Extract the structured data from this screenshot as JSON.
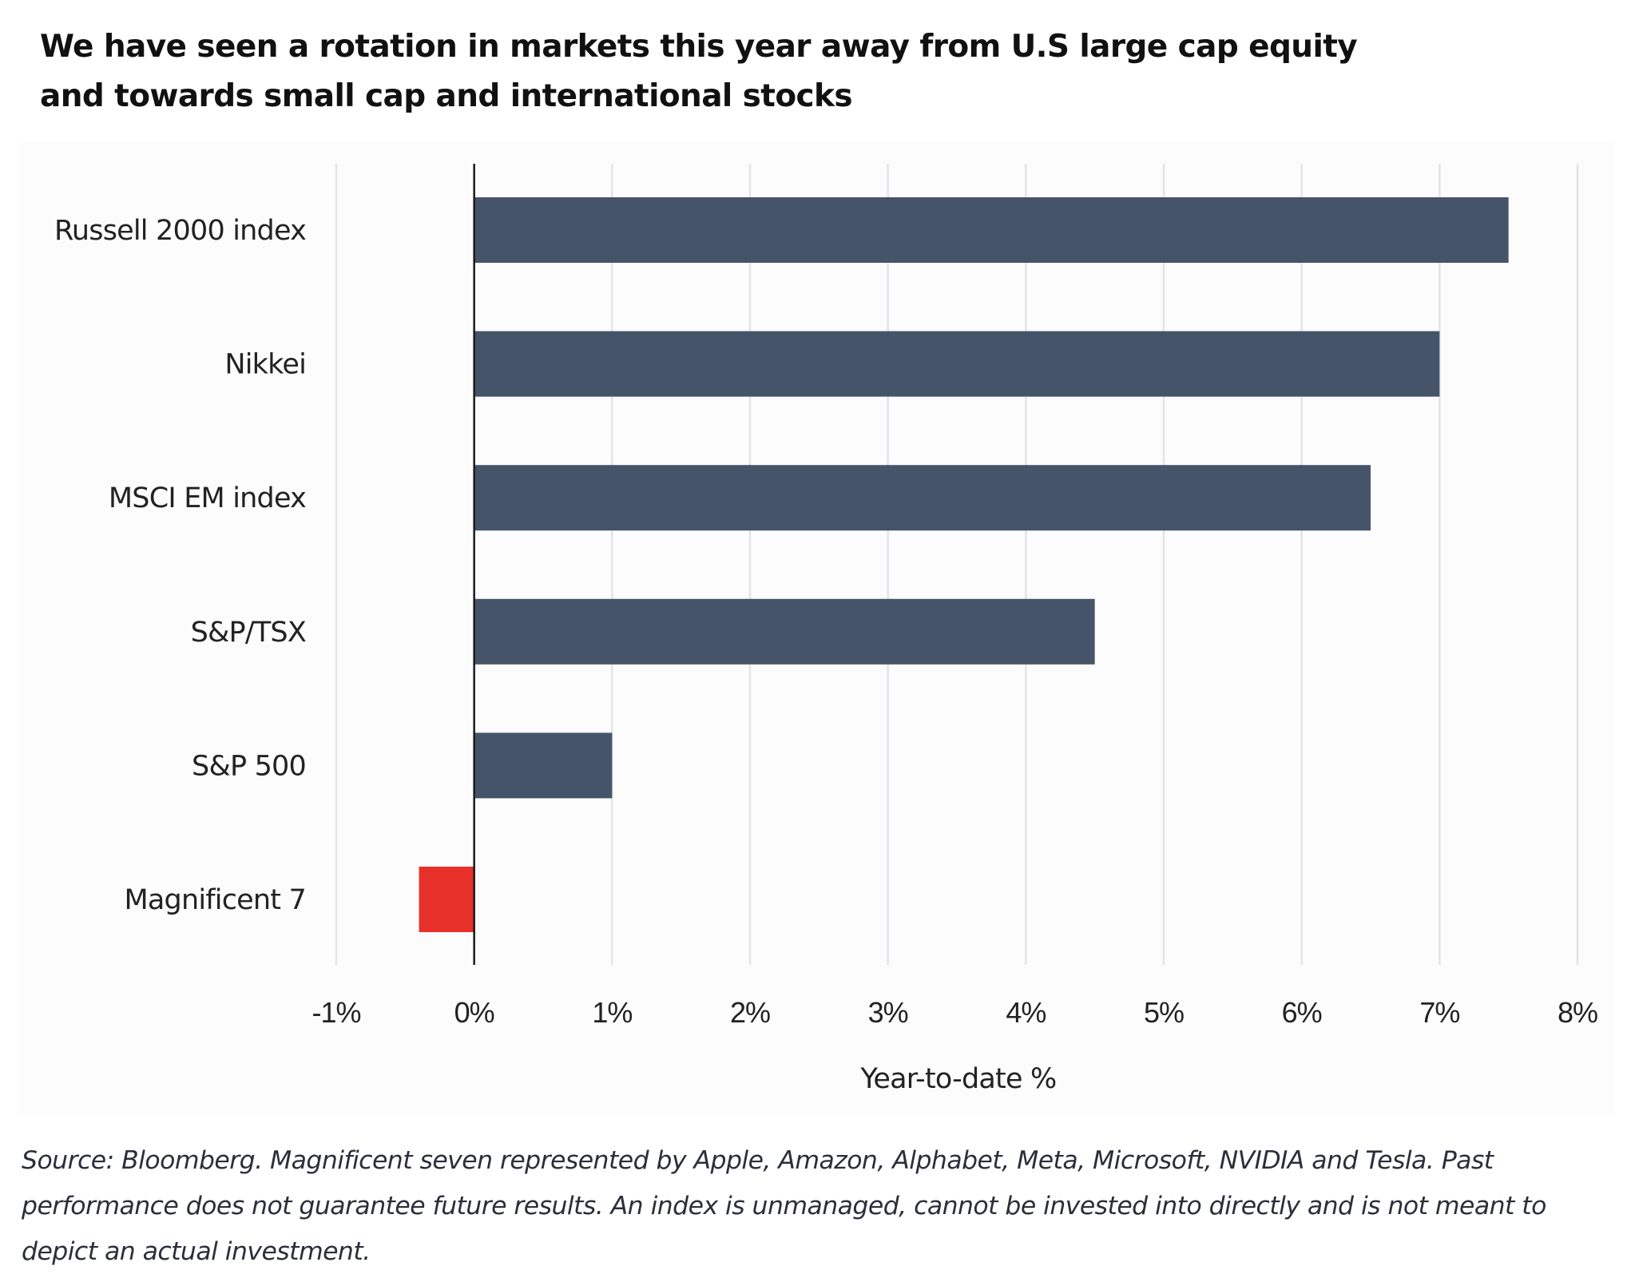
{
  "title": "We have seen a  rotation in markets this year away from  U.S large cap equity and towards small cap and international stocks",
  "title_lines": [
    "We have seen a  rotation in markets this year away from  U.S large cap equity",
    "and towards small cap and international stocks"
  ],
  "footnote": "Source: Bloomberg. Magnificent seven represented by Apple, Amazon, Alphabet, Meta, Microsoft, NVIDIA and Tesla. Past performance does not guarantee future results. An index is unmanaged, cannot be invested into directly and is not meant to depict an actual investment.",
  "colors": {
    "bar_default": "#46546a",
    "bar_negative": "#e8302a",
    "gridline": "#e2e4e8",
    "zero_axis": "#1a1a1a"
  },
  "chart_data": {
    "type": "bar",
    "orientation": "horizontal",
    "title": "We have seen a  rotation in markets this year away from  U.S large cap equity and towards small cap and international stocks",
    "categories": [
      "Russell 2000 index",
      "Nikkei",
      "MSCI EM index",
      "S&P/TSX",
      "S&P 500",
      "Magnificent 7"
    ],
    "values": [
      7.5,
      7.0,
      6.5,
      4.5,
      1.0,
      -0.4
    ],
    "highlight": {
      "category": "Magnificent 7",
      "color": "#e8302a"
    },
    "xlabel": "Year-to-date %",
    "ylabel": "",
    "xlim": [
      -1,
      8
    ],
    "xticks": [
      -1,
      0,
      1,
      2,
      3,
      4,
      5,
      6,
      7,
      8
    ],
    "xtick_labels": [
      "-1%",
      "0%",
      "1%",
      "2%",
      "3%",
      "4%",
      "5%",
      "6%",
      "7%",
      "8%"
    ],
    "grid": "vertical",
    "legend": "none",
    "unit": "%"
  }
}
